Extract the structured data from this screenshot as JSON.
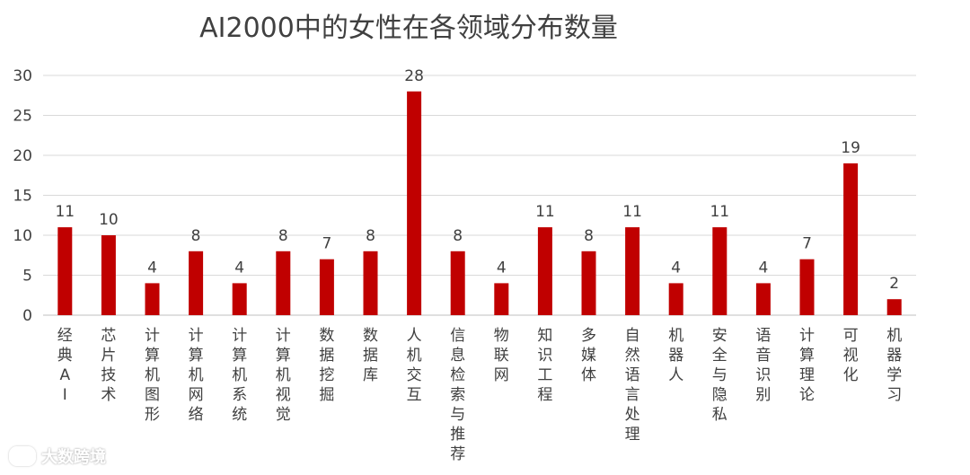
{
  "chart_data": {
    "type": "bar",
    "title": "AI2000中的女性在各领域分布数量",
    "xlabel": "",
    "ylabel": "",
    "ylim": [
      0,
      30
    ],
    "yticks": [
      0,
      5,
      10,
      15,
      20,
      25,
      30
    ],
    "grid": true,
    "bar_color": "#c00000",
    "categories": [
      "经典AI",
      "芯片技术",
      "计算机图形",
      "计算机网络",
      "计算机系统",
      "计算机视觉",
      "数据挖掘",
      "数据库",
      "人机交互",
      "信息检索与推荐",
      "物联网",
      "知识工程",
      "多媒体",
      "自然语言处理",
      "机器人",
      "安全与隐私",
      "语音识别",
      "计算理论",
      "可视化",
      "机器学习"
    ],
    "values": [
      11,
      10,
      4,
      8,
      4,
      8,
      7,
      8,
      28,
      8,
      4,
      11,
      8,
      11,
      4,
      11,
      4,
      7,
      19,
      2
    ]
  },
  "watermark": {
    "text": "大数跨境"
  }
}
